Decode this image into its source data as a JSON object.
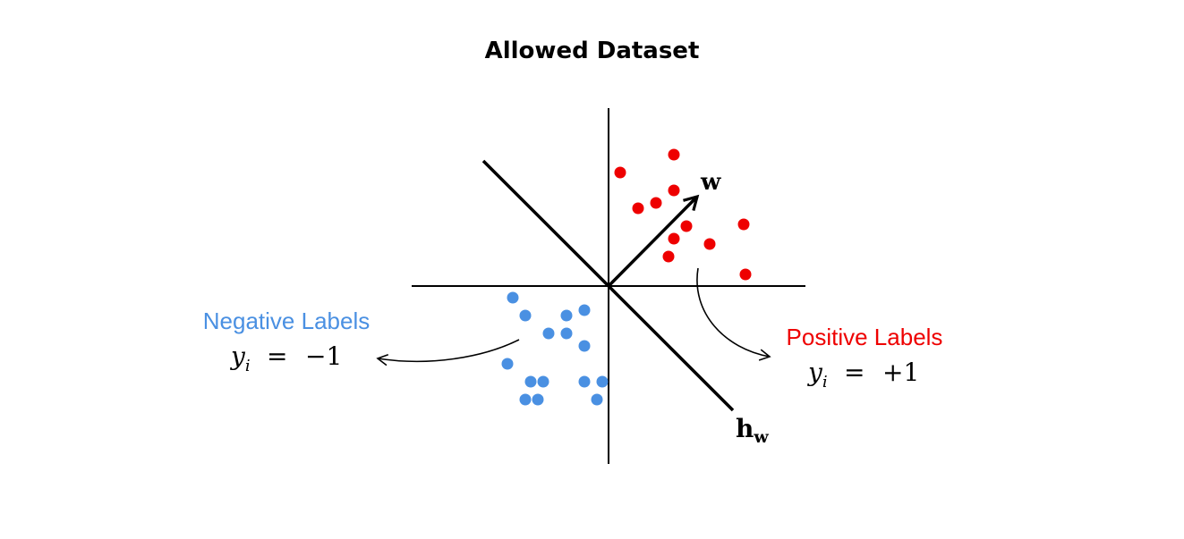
{
  "title": "Allowed Dataset",
  "vector_label": "w",
  "hyperplane_label": {
    "base": "h",
    "sub": "w"
  },
  "negative": {
    "label": "Negative Labels",
    "eq_var": "y",
    "eq_sub": "i",
    "eq_sign": "=",
    "eq_value": "−1",
    "color": "#4a90e2"
  },
  "positive": {
    "label": "Positive Labels",
    "eq_var": "y",
    "eq_sub": "i",
    "eq_sign": "=",
    "eq_value": "+1",
    "color": "#ee0000"
  }
}
